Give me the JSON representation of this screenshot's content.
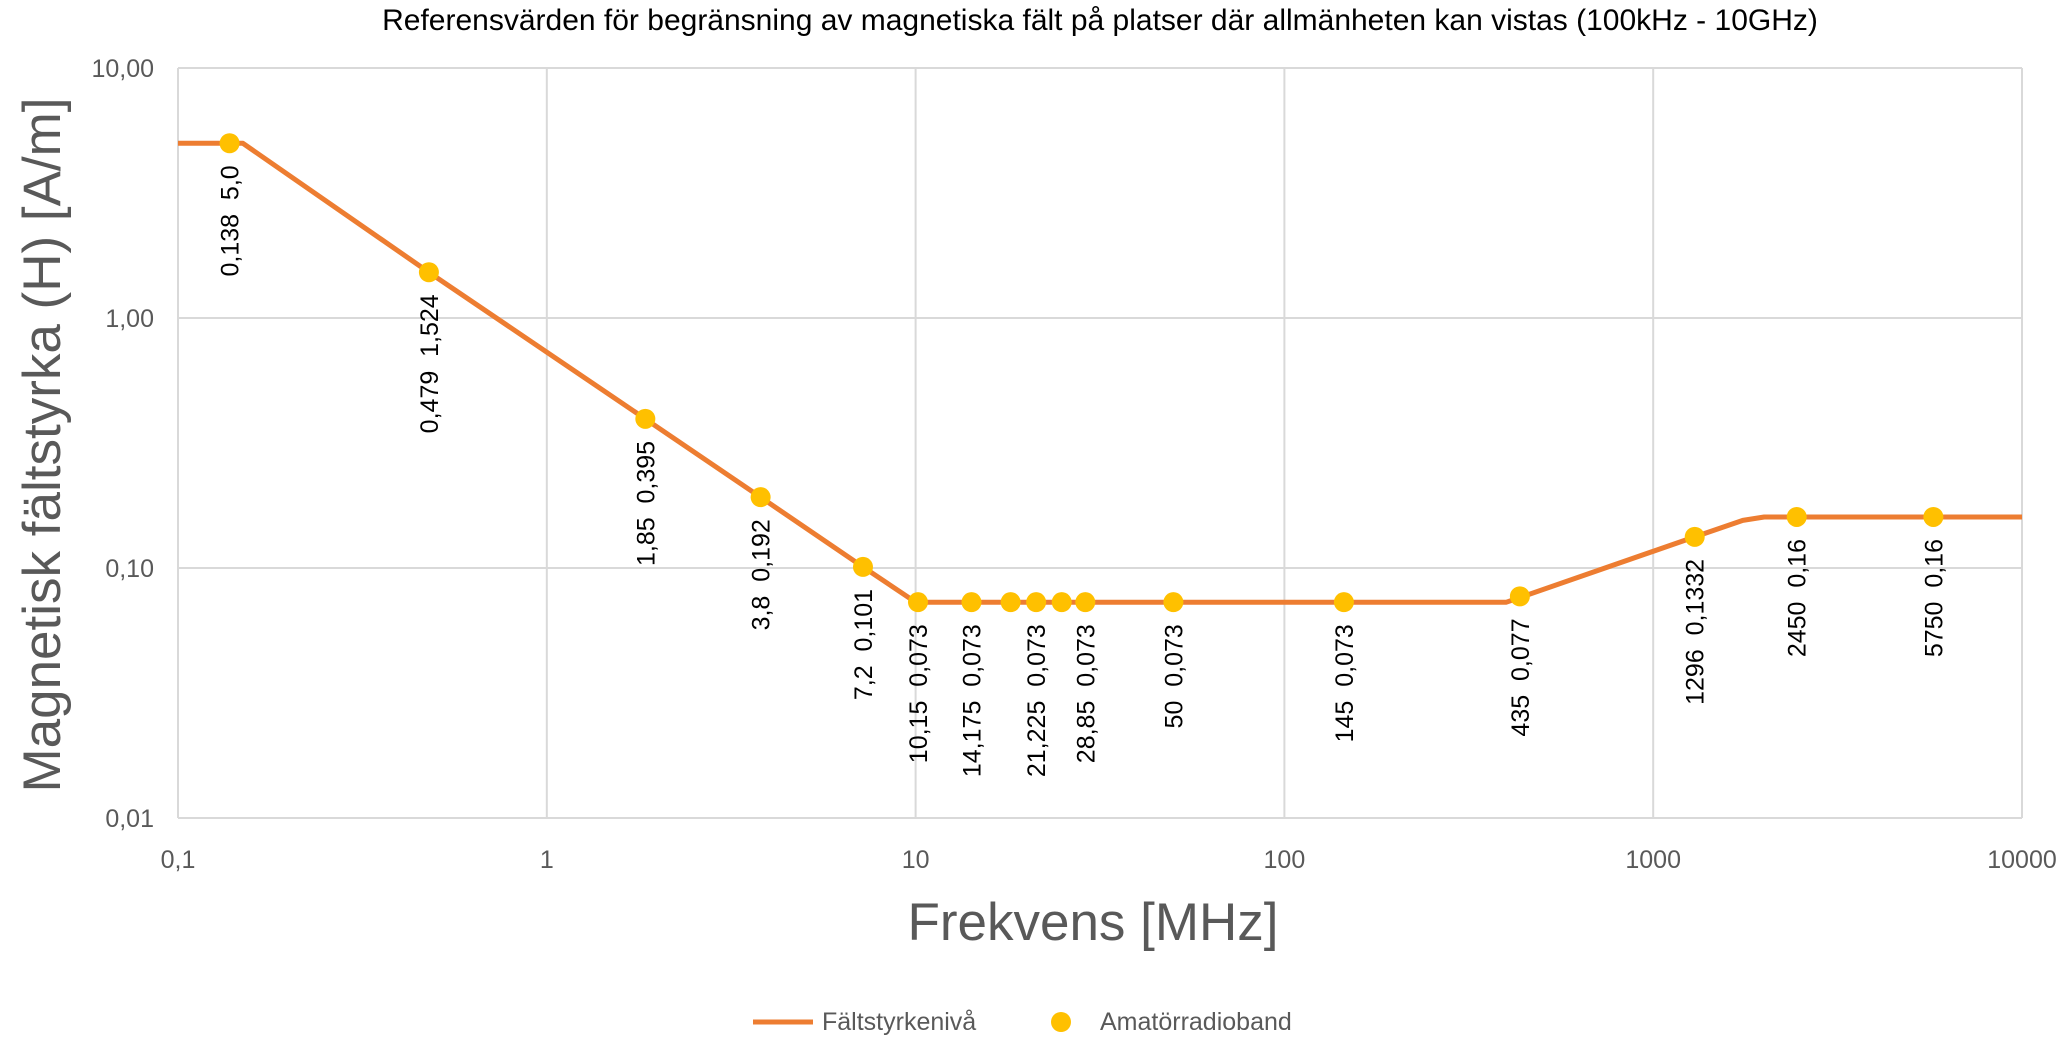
{
  "chart_data": {
    "type": "line",
    "title": "Referensvärden för begränsning av magnetiska fält på platser där allmänheten kan vistas (100kHz - 10GHz)",
    "xlabel": "Frekvens [MHz]",
    "ylabel": "Magnetisk fältstyrka (H)  [A/m]",
    "x_scale": "log",
    "y_scale": "log",
    "xlim": [
      0.1,
      10000
    ],
    "ylim": [
      0.01,
      10
    ],
    "grid": true,
    "legend_position": "bottom",
    "x_ticks": [
      {
        "value": 0.1,
        "label": "0,1"
      },
      {
        "value": 1,
        "label": "1"
      },
      {
        "value": 10,
        "label": "10"
      },
      {
        "value": 100,
        "label": "100"
      },
      {
        "value": 1000,
        "label": "1000"
      },
      {
        "value": 10000,
        "label": "10000"
      }
    ],
    "y_ticks": [
      {
        "value": 0.01,
        "label": "0,01"
      },
      {
        "value": 0.1,
        "label": "0,10"
      },
      {
        "value": 1,
        "label": "1,00"
      },
      {
        "value": 10,
        "label": "10,00"
      }
    ],
    "series": [
      {
        "name": "Fältstyrkenivå",
        "kind": "line",
        "color": "#ED7D31",
        "x": [
          0.1,
          0.15,
          0.479,
          1.85,
          3.8,
          7.2,
          10,
          400,
          1296,
          1750,
          2000,
          10000
        ],
        "y": [
          5.0,
          5.0,
          1.524,
          0.395,
          0.192,
          0.101,
          0.073,
          0.073,
          0.1332,
          0.155,
          0.16,
          0.16
        ]
      },
      {
        "name": "Amatörradioband",
        "kind": "scatter",
        "color": "#FFC000",
        "points": [
          {
            "x": 0.138,
            "y": 5.0,
            "label": "0,138  5,0"
          },
          {
            "x": 0.479,
            "y": 1.524,
            "label": "0,479  1,524"
          },
          {
            "x": 1.85,
            "y": 0.395,
            "label": "1,85  0,395"
          },
          {
            "x": 3.8,
            "y": 0.192,
            "label": "3,8  0,192"
          },
          {
            "x": 7.2,
            "y": 0.101,
            "label": "7,2  0,101"
          },
          {
            "x": 10.15,
            "y": 0.073,
            "label": "10,15  0,073"
          },
          {
            "x": 14.175,
            "y": 0.073,
            "label": "14,175  0,073"
          },
          {
            "x": 18.1,
            "y": 0.073,
            "label": ""
          },
          {
            "x": 21.225,
            "y": 0.073,
            "label": "21,225  0,073"
          },
          {
            "x": 24.9,
            "y": 0.073,
            "label": ""
          },
          {
            "x": 28.85,
            "y": 0.073,
            "label": "28,85  0,073"
          },
          {
            "x": 50,
            "y": 0.073,
            "label": "50  0,073"
          },
          {
            "x": 145,
            "y": 0.073,
            "label": "145  0,073"
          },
          {
            "x": 435,
            "y": 0.077,
            "label": "435  0,077"
          },
          {
            "x": 1296,
            "y": 0.1332,
            "label": "1296  0,1332"
          },
          {
            "x": 2450,
            "y": 0.16,
            "label": "2450  0,16"
          },
          {
            "x": 5750,
            "y": 0.16,
            "label": "5750  0,16"
          }
        ]
      }
    ]
  }
}
